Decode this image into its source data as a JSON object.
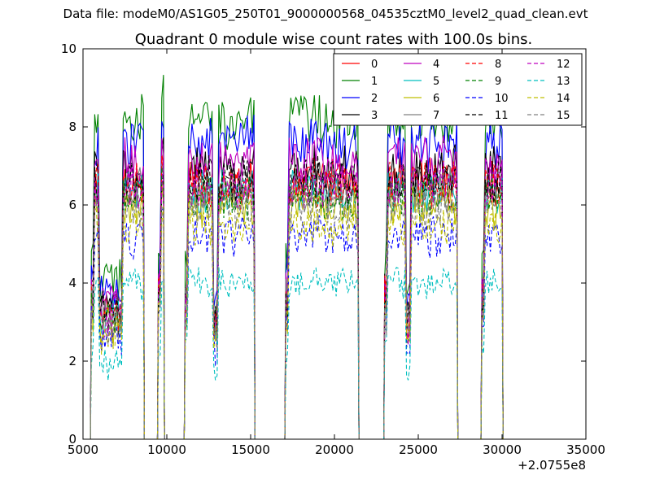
{
  "figure": {
    "suptitle": "Data file: modeM0/AS1G05_250T01_9000000568_04535cztM0_level2_quad_clean.evt"
  },
  "chart_data": {
    "type": "line",
    "title": "Quadrant 0 module wise count rates with 100.0s bins.",
    "xlabel": "",
    "ylabel": "",
    "x_offset_label": "+2.0755e8",
    "xlim": [
      5000,
      35000
    ],
    "ylim": [
      0,
      10
    ],
    "xticks": [
      5000,
      10000,
      15000,
      20000,
      25000,
      30000,
      35000
    ],
    "yticks": [
      0,
      2,
      4,
      6,
      8,
      10
    ],
    "grid": false,
    "legend": {
      "location": "top-right",
      "columns": 4
    },
    "observation_segments": [
      {
        "start": 5500,
        "end": 8600,
        "shape": "dip",
        "dip_start": 5900,
        "dip_end": 7400
      },
      {
        "start": 9500,
        "end": 9800,
        "shape": "spike"
      },
      {
        "start": 11100,
        "end": 15200,
        "shape": "plateau",
        "dip_at": 12900
      },
      {
        "start": 17100,
        "end": 21400,
        "shape": "plateau",
        "dip_at": null
      },
      {
        "start": 23000,
        "end": 27300,
        "shape": "plateau",
        "dip_at": 24400
      },
      {
        "start": 28800,
        "end": 30000,
        "shape": "plateau",
        "dip_at": null
      }
    ],
    "series": [
      {
        "name": "0",
        "color": "#ff0000",
        "style": "solid",
        "level": 6.6
      },
      {
        "name": "1",
        "color": "#008000",
        "style": "solid",
        "level": 8.2
      },
      {
        "name": "2",
        "color": "#0000ff",
        "style": "solid",
        "level": 7.6
      },
      {
        "name": "3",
        "color": "#000000",
        "style": "solid",
        "level": 6.9
      },
      {
        "name": "4",
        "color": "#bf00bf",
        "style": "solid",
        "level": 7.1
      },
      {
        "name": "5",
        "color": "#00bfbf",
        "style": "solid",
        "level": 6.3
      },
      {
        "name": "6",
        "color": "#bfbf00",
        "style": "solid",
        "level": 6.0
      },
      {
        "name": "7",
        "color": "#808080",
        "style": "solid",
        "level": 6.4
      },
      {
        "name": "8",
        "color": "#ff0000",
        "style": "dashed",
        "level": 6.5
      },
      {
        "name": "9",
        "color": "#008000",
        "style": "dashed",
        "level": 6.2
      },
      {
        "name": "10",
        "color": "#0000ff",
        "style": "dashed",
        "level": 5.2
      },
      {
        "name": "11",
        "color": "#000000",
        "style": "dashed",
        "level": 6.6
      },
      {
        "name": "12",
        "color": "#bf00bf",
        "style": "dashed",
        "level": 6.5
      },
      {
        "name": "13",
        "color": "#00bfbf",
        "style": "dashed",
        "level": 4.0
      },
      {
        "name": "14",
        "color": "#bfbf00",
        "style": "dashed",
        "level": 5.5
      },
      {
        "name": "15",
        "color": "#808080",
        "style": "dashed",
        "level": 5.9
      }
    ]
  }
}
